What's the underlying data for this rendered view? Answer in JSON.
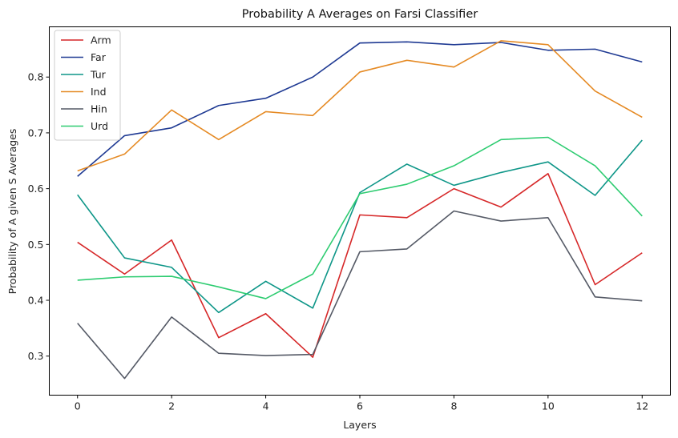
{
  "chart_data": {
    "type": "line",
    "title": "Probability A Averages on Farsi Classifier",
    "xlabel": "Layers",
    "ylabel": "Probability of A given S Averages",
    "x": [
      0,
      1,
      2,
      3,
      4,
      5,
      6,
      7,
      8,
      9,
      10,
      11,
      12
    ],
    "xticks": [
      0,
      2,
      4,
      6,
      8,
      10,
      12
    ],
    "yticks": [
      0.3,
      0.4,
      0.5,
      0.6,
      0.7,
      0.8
    ],
    "xlim": [
      -0.6,
      12.6
    ],
    "ylim": [
      0.23,
      0.89
    ],
    "grid": false,
    "legend_position": "top-left",
    "series": [
      {
        "name": "Arm",
        "color": "#d62728",
        "values": [
          0.504,
          0.447,
          0.508,
          0.333,
          0.376,
          0.298,
          0.553,
          0.548,
          0.6,
          0.567,
          0.627,
          0.428,
          0.485
        ]
      },
      {
        "name": "Far",
        "color": "#1f3a93",
        "values": [
          0.622,
          0.695,
          0.709,
          0.749,
          0.762,
          0.8,
          0.861,
          0.863,
          0.858,
          0.862,
          0.848,
          0.85,
          0.827
        ]
      },
      {
        "name": "Tur",
        "color": "#0e9688",
        "values": [
          0.589,
          0.476,
          0.459,
          0.378,
          0.434,
          0.386,
          0.593,
          0.644,
          0.606,
          0.629,
          0.648,
          0.588,
          0.687
        ]
      },
      {
        "name": "Ind",
        "color": "#e58a24",
        "values": [
          0.632,
          0.662,
          0.741,
          0.688,
          0.738,
          0.731,
          0.809,
          0.83,
          0.818,
          0.865,
          0.858,
          0.775,
          0.728
        ]
      },
      {
        "name": "Hin",
        "color": "#555a66",
        "values": [
          0.359,
          0.26,
          0.37,
          0.305,
          0.301,
          0.303,
          0.487,
          0.492,
          0.56,
          0.542,
          0.548,
          0.406,
          0.399
        ]
      },
      {
        "name": "Urd",
        "color": "#2ecc71",
        "values": [
          0.436,
          0.442,
          0.443,
          0.424,
          0.403,
          0.447,
          0.591,
          0.608,
          0.641,
          0.688,
          0.692,
          0.641,
          0.551
        ]
      }
    ]
  }
}
